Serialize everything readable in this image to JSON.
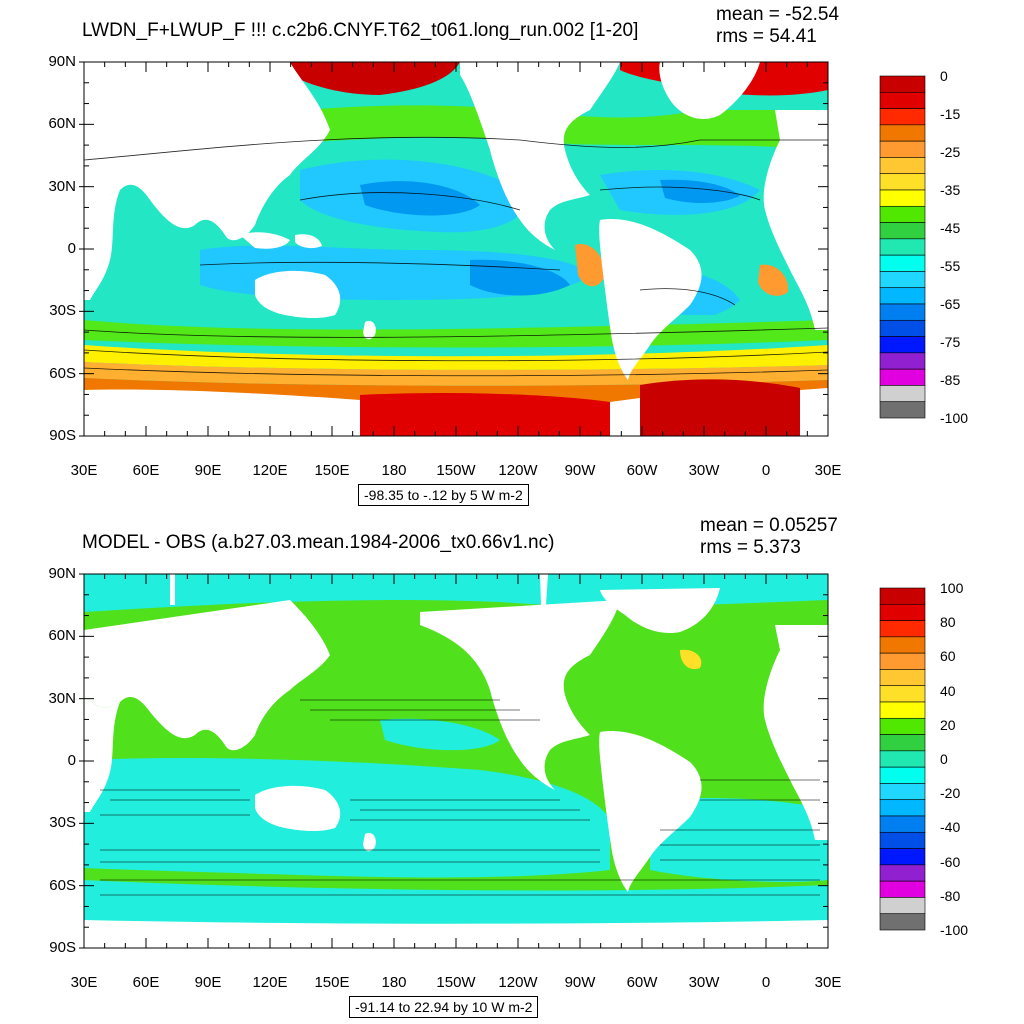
{
  "panels": [
    {
      "id": "top",
      "title": "LWDN_F+LWUP_F !!!  c.c2b6.CNYF.T62_t061.long_run.002 [1-20]",
      "mean_label": "mean = -52.54",
      "rms_label": "rms = 54.41",
      "range_label": "-98.35 to -.12 by 5 W m-2",
      "colorbar_labels": [
        "0",
        "-15",
        "-25",
        "-35",
        "-45",
        "-55",
        "-65",
        "-75",
        "-85",
        "-100"
      ],
      "colorbar_colors": [
        "#c80000",
        "#e00000",
        "#ff2a00",
        "#f07800",
        "#ff9a30",
        "#ffc832",
        "#ffe028",
        "#ffff00",
        "#50e800",
        "#30d040",
        "#20e8b0",
        "#00ffee",
        "#20d8ff",
        "#00b8ff",
        "#0080f0",
        "#0050e8",
        "#0018ff",
        "#9020d0",
        "#e000e0",
        "#d0d0d0",
        "#707070"
      ]
    },
    {
      "id": "bottom",
      "title": "MODEL - OBS (a.b27.03.mean.1984-2006_tx0.66v1.nc)",
      "mean_label": "mean = 0.05257",
      "rms_label": "rms = 5.373",
      "range_label": "-91.14 to 22.94 by 10 W m-2",
      "colorbar_labels": [
        "100",
        "80",
        "60",
        "40",
        "20",
        "0",
        "-20",
        "-40",
        "-60",
        "-80",
        "-100"
      ],
      "colorbar_colors": [
        "#c80000",
        "#e00000",
        "#ff2a00",
        "#f07800",
        "#ff9a30",
        "#ffc832",
        "#ffe028",
        "#ffff00",
        "#50e800",
        "#30d040",
        "#20e8b0",
        "#00ffee",
        "#20d8ff",
        "#00b8ff",
        "#0080f0",
        "#0050e8",
        "#0018ff",
        "#9020d0",
        "#e000e0",
        "#d0d0d0",
        "#707070"
      ]
    }
  ],
  "lat_labels": [
    "90N",
    "60N",
    "30N",
    "0",
    "30S",
    "60S",
    "90S"
  ],
  "lon_labels": [
    "30E",
    "60E",
    "90E",
    "120E",
    "150E",
    "180",
    "150W",
    "120W",
    "90W",
    "60W",
    "30W",
    "0",
    "30E"
  ]
}
